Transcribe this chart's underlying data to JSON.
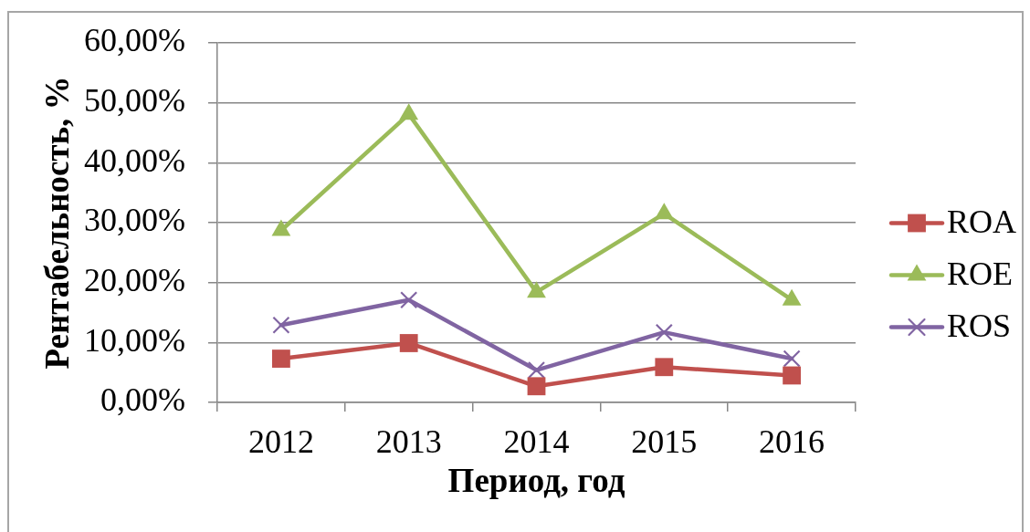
{
  "chart_data": {
    "type": "line",
    "xlabel": "Период, год",
    "ylabel": "Рентабельность, %",
    "categories": [
      "2012",
      "2013",
      "2014",
      "2015",
      "2016"
    ],
    "series": [
      {
        "name": "ROA",
        "color": "#c0504d",
        "marker": "square",
        "values": [
          7.3,
          9.9,
          2.7,
          5.9,
          4.5
        ]
      },
      {
        "name": "ROE",
        "color": "#9bbb59",
        "marker": "triangle",
        "values": [
          28.7,
          48.1,
          18.4,
          31.5,
          17.1
        ]
      },
      {
        "name": "ROS",
        "color": "#8064a2",
        "marker": "cross",
        "values": [
          12.9,
          17.1,
          5.4,
          11.7,
          7.3
        ]
      }
    ],
    "ylim": [
      0,
      60
    ],
    "yticks": [
      {
        "value": 0,
        "label": "0,00%"
      },
      {
        "value": 10,
        "label": "10,00%"
      },
      {
        "value": 20,
        "label": "20,00%"
      },
      {
        "value": 30,
        "label": "30,00%"
      },
      {
        "value": 40,
        "label": "40,00%"
      },
      {
        "value": 50,
        "label": "50,00%"
      },
      {
        "value": 60,
        "label": "60,00%"
      }
    ],
    "grid": "y",
    "legend": "right",
    "line_style": "solid"
  }
}
